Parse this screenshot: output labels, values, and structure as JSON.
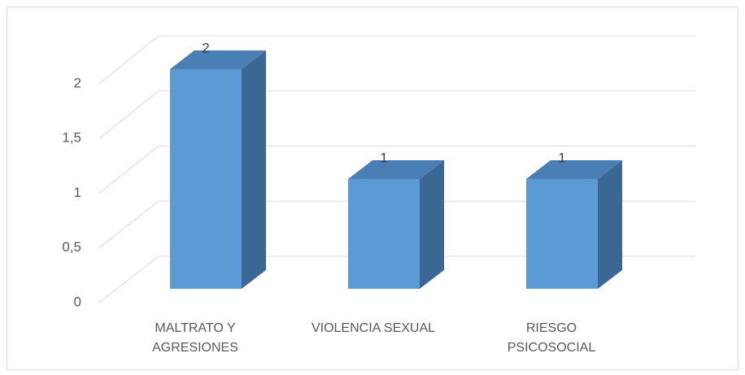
{
  "chart_data": {
    "type": "bar3d",
    "categories": [
      "MALTRATO Y AGRESIONES",
      "VIOLENCIA SEXUAL",
      "RIESGO PSICOSOCIAL"
    ],
    "values": [
      2,
      1,
      1
    ],
    "color": "#5b9bd5",
    "ylim": [
      0,
      2
    ],
    "yticks": [
      0,
      {
        "value": 0.5,
        "label": "0,5"
      },
      1,
      {
        "value": 1.5,
        "label": "1,5"
      },
      2
    ],
    "grid": true
  }
}
